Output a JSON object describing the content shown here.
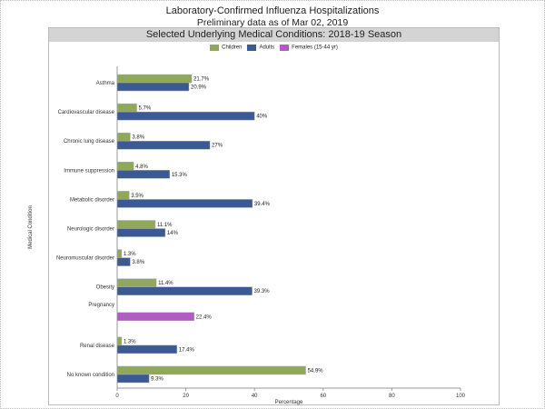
{
  "header": {
    "title": "Laboratory-Confirmed Influenza Hospitalizations",
    "subtitle": "Preliminary data as of Mar 02, 2019",
    "panel_title": "Selected Underlying Medical Conditions: 2018-19 Season"
  },
  "chart_data": {
    "type": "bar",
    "orientation": "horizontal",
    "title": "Selected Underlying Medical Conditions: 2018-19 Season",
    "xlabel": "Percentage",
    "ylabel": "Medical Condition",
    "xlim": [
      0,
      100
    ],
    "xticks": [
      "0",
      "20",
      "40",
      "60",
      "80",
      "100"
    ],
    "legend_position": "top",
    "grid": false,
    "categories": [
      "Asthma",
      "Cardiovascular disease",
      "Chronic lung disease",
      "Immune suppression",
      "Metabolic disorder",
      "Neurologic disorder",
      "Neuromuscular disorder",
      "Obesity",
      "Pregnancy",
      "Renal disease",
      "No known condition"
    ],
    "series": [
      {
        "name": "Children",
        "color": "#8fa85a",
        "values": [
          21.7,
          5.7,
          3.8,
          4.8,
          3.5,
          11.1,
          1.3,
          11.4,
          null,
          1.3,
          54.9
        ],
        "labels": [
          "21.7%",
          "5.7%",
          "3.8%",
          "4.8%",
          "3.5%",
          "11.1%",
          "1.3%",
          "11.4%",
          null,
          "1.3%",
          "54.9%"
        ]
      },
      {
        "name": "Adults",
        "color": "#3b5a94",
        "values": [
          20.9,
          40,
          27,
          15.3,
          39.4,
          14,
          3.8,
          39.3,
          null,
          17.4,
          9.3
        ],
        "labels": [
          "20.9%",
          "40%",
          "27%",
          "15.3%",
          "39.4%",
          "14%",
          "3.8%",
          "39.3%",
          null,
          "17.4%",
          "9.3%"
        ]
      },
      {
        "name": "Females (15-44 yr)",
        "color": "#b05cc4",
        "values": [
          null,
          null,
          null,
          null,
          null,
          null,
          null,
          null,
          22.4,
          null,
          null
        ],
        "labels": [
          null,
          null,
          null,
          null,
          null,
          null,
          null,
          null,
          "22.4%",
          null,
          null
        ]
      }
    ]
  }
}
